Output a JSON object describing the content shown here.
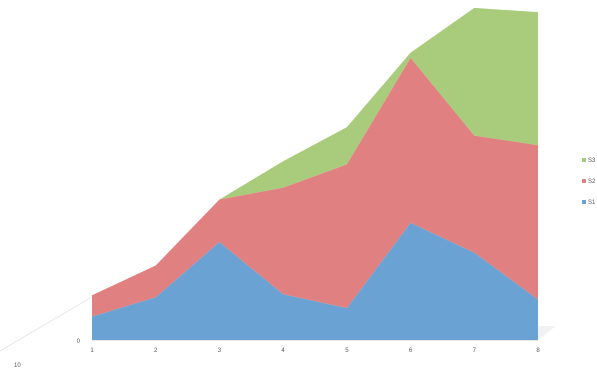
{
  "chart_data": {
    "type": "area",
    "stacked": true,
    "three_d": true,
    "categories": [
      "1",
      "2",
      "3",
      "4",
      "5",
      "6",
      "7",
      "8"
    ],
    "series": [
      {
        "name": "S1",
        "color": "#6aa2d3",
        "values": [
          22,
          40,
          92,
          43,
          30,
          110,
          82,
          38
        ]
      },
      {
        "name": "S2",
        "color": "#e08080",
        "values": [
          20,
          30,
          40,
          100,
          135,
          155,
          110,
          145
        ]
      },
      {
        "name": "S3",
        "color": "#a8cc7c",
        "values": [
          0,
          0,
          0,
          25,
          35,
          5,
          120,
          125
        ]
      }
    ],
    "y_tick_labels": [
      "0"
    ],
    "stray_label": "10",
    "ylim": [
      0,
      310
    ],
    "grid": false,
    "legend": "right"
  }
}
